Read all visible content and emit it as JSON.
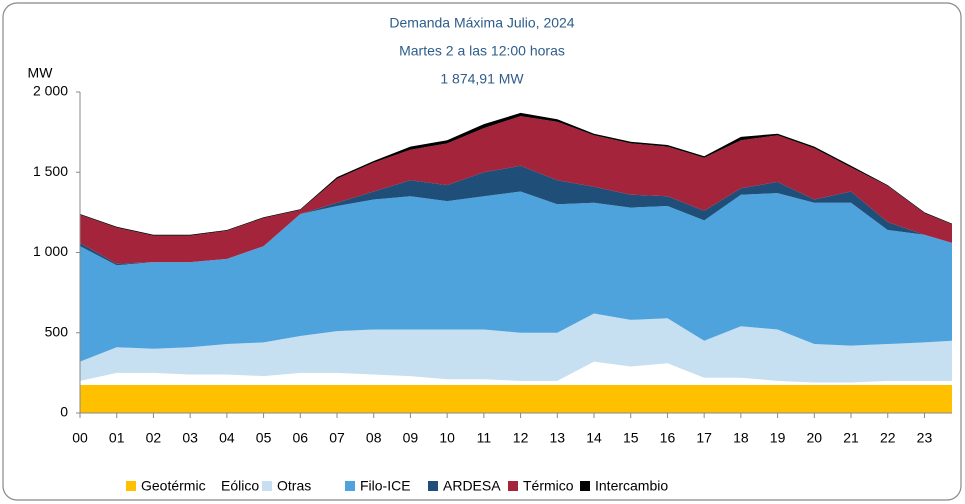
{
  "chart_data": {
    "type": "stacked_area",
    "title": "Demanda Máxima Julio, 2024",
    "subtitle": "Martes 2 a las 12:00 horas",
    "annotation": "1 874,91 MW",
    "y_label": "MW",
    "x": [
      0,
      1,
      2,
      3,
      4,
      5,
      6,
      7,
      8,
      9,
      10,
      11,
      12,
      13,
      14,
      15,
      16,
      17,
      18,
      19,
      20,
      21,
      22,
      23,
      23.75
    ],
    "xlim": [
      0,
      23.75
    ],
    "xticks": [
      {
        "value": 0,
        "label": "00"
      },
      {
        "value": 1,
        "label": "01"
      },
      {
        "value": 2,
        "label": "02"
      },
      {
        "value": 3,
        "label": "03"
      },
      {
        "value": 4,
        "label": "04"
      },
      {
        "value": 5,
        "label": "05"
      },
      {
        "value": 6,
        "label": "06"
      },
      {
        "value": 7,
        "label": "07"
      },
      {
        "value": 8,
        "label": "08"
      },
      {
        "value": 9,
        "label": "09"
      },
      10,
      11,
      12,
      13,
      14,
      15,
      16,
      17,
      18,
      19,
      20,
      21,
      22,
      23
    ],
    "ylim": [
      0,
      2000
    ],
    "yticks": [
      0,
      500,
      {
        "value": 1000,
        "label": "1 000"
      },
      {
        "value": 1500,
        "label": "1 500"
      },
      {
        "value": 2000,
        "label": "2 000"
      }
    ],
    "series": [
      {
        "name": "Geotérmico",
        "color": "#ffc000",
        "values": [
          175,
          175,
          175,
          175,
          175,
          175,
          175,
          175,
          175,
          175,
          175,
          175,
          175,
          175,
          175,
          175,
          175,
          175,
          175,
          175,
          175,
          175,
          175,
          175,
          175
        ]
      },
      {
        "name": "Eólico",
        "color": "#ffffff",
        "values": [
          25,
          75,
          75,
          65,
          65,
          55,
          75,
          75,
          65,
          55,
          35,
          35,
          25,
          25,
          145,
          115,
          135,
          45,
          45,
          25,
          15,
          15,
          25,
          25,
          25
        ]
      },
      {
        "name": "Otras",
        "color": "#c6dff1",
        "values": [
          120,
          160,
          150,
          170,
          190,
          210,
          230,
          260,
          280,
          290,
          310,
          310,
          300,
          300,
          300,
          290,
          280,
          230,
          320,
          320,
          240,
          230,
          230,
          240,
          250
        ]
      },
      {
        "name": "Filo-ICE",
        "color": "#4ea3dc",
        "values": [
          720,
          510,
          540,
          530,
          530,
          600,
          760,
          780,
          810,
          830,
          800,
          830,
          880,
          800,
          690,
          700,
          700,
          750,
          820,
          850,
          880,
          890,
          710,
          670,
          610
        ]
      },
      {
        "name": "ARDESA",
        "color": "#1f4e79",
        "values": [
          20,
          10,
          0,
          0,
          0,
          0,
          0,
          20,
          50,
          100,
          100,
          150,
          160,
          150,
          100,
          80,
          60,
          60,
          40,
          70,
          20,
          70,
          50,
          0,
          0
        ]
      },
      {
        "name": "Térmico",
        "color": "#a4243b",
        "values": [
          175,
          225,
          165,
          165,
          175,
          175,
          25,
          150,
          180,
          190,
          260,
          275,
          310,
          365,
          320,
          320,
          310,
          330,
          300,
          290,
          320,
          150,
          225,
          135,
          115
        ]
      },
      {
        "name": "Intercambio",
        "color": "#000000",
        "values": [
          5,
          5,
          5,
          5,
          5,
          5,
          5,
          10,
          10,
          20,
          20,
          25,
          20,
          15,
          10,
          10,
          10,
          10,
          20,
          10,
          10,
          10,
          5,
          5,
          5
        ]
      }
    ]
  }
}
